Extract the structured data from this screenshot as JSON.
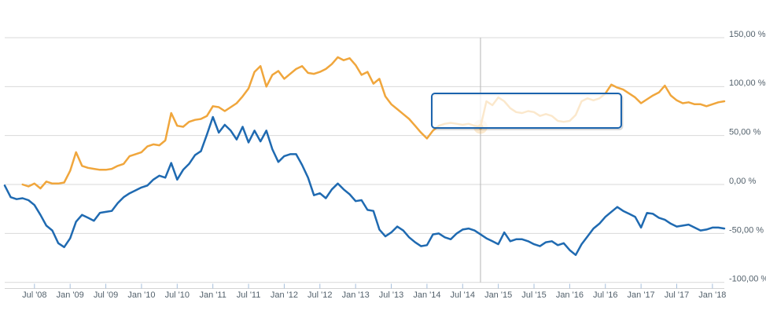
{
  "chart": {
    "background_color": "#ffffff",
    "grid_color": "#d9d9d9",
    "axis_line_color": "#d4d4d4",
    "tick_color": "#a5bedb",
    "label_color": "#53616c",
    "crosshair_color": "#b5b5b5",
    "y_axis": {
      "position": "right",
      "tick_values": [
        150,
        100,
        50,
        0,
        -50,
        -100
      ],
      "tick_labels": [
        "150,00 %",
        "100,00 %",
        "50,00 %",
        "0,00 %",
        "-50,00 %",
        "-100,00 %"
      ]
    },
    "x_axis": {
      "first_tick_month": "2008-07",
      "tick_interval_months": 6,
      "tick_labels": [
        "Jul '08",
        "Jan '09",
        "Jul '09",
        "Jan '10",
        "Jul '10",
        "Jan '11",
        "Jul '11",
        "Jan '12",
        "Jul '12",
        "Jan '13",
        "Jul '13",
        "Jan '14",
        "Jul '14",
        "Jan '15",
        "Jul '15",
        "Jan '16",
        "Jul '16",
        "Jan '17",
        "Jul '17",
        "Jan '18"
      ]
    },
    "tooltip": {
      "visible": true,
      "text": "",
      "border_color": "#1a63ad",
      "fill_color": "rgba(255,255,255,0.74)"
    },
    "highlight": {
      "date": "2014-10",
      "series": "series_2_orange",
      "value_pct": 59,
      "marker_color": "#f0a63c",
      "halo_color": "rgba(240,166,60,0.25)"
    }
  },
  "chart_data": {
    "type": "line",
    "x_unit": "month",
    "y_unit": "percent",
    "x_start": "2008-02",
    "x_end": "2018-03",
    "ylim": [
      -100,
      150
    ],
    "grid": true,
    "legend": "none",
    "series": [
      {
        "name": "series_1_blue",
        "color": "#1f6ab1",
        "start": "2008-02",
        "values": [
          -1,
          -13,
          -15,
          -14,
          -16,
          -21,
          -31,
          -42,
          -47,
          -60,
          -64,
          -55,
          -38,
          -31,
          -34,
          -37,
          -29,
          -28,
          -27,
          -19,
          -13,
          -9,
          -6,
          -3,
          -1,
          5,
          9,
          7,
          22,
          5,
          15,
          21,
          30,
          34,
          51,
          69,
          53,
          61,
          55,
          46,
          59,
          43,
          55,
          44,
          55,
          36,
          23,
          29,
          31,
          31,
          20,
          7,
          -11,
          -9,
          -14,
          -5,
          1,
          -5,
          -10,
          -17,
          -16,
          -26,
          -27,
          -46,
          -53,
          -49,
          -43,
          -47,
          -54,
          -59,
          -63,
          -62,
          -51,
          -50,
          -54,
          -56,
          -50,
          -46,
          -45,
          -47,
          -51,
          -55,
          -58,
          -61,
          -49,
          -58,
          -56,
          -56,
          -58,
          -61,
          -63,
          -59,
          -58,
          -62,
          -60,
          -67,
          -72,
          -61,
          -53,
          -45,
          -40,
          -33,
          -28,
          -23,
          -27,
          -30,
          -33,
          -44,
          -29,
          -30,
          -34,
          -36,
          -40,
          -43,
          -42,
          -41,
          -44,
          -47,
          -46,
          -44,
          -44,
          -45
        ]
      },
      {
        "name": "series_2_orange",
        "color": "#f0a63c",
        "start": "2008-05",
        "values": [
          0,
          -2,
          1,
          -4,
          3,
          1,
          1,
          2,
          14,
          33,
          19,
          17,
          16,
          15,
          15,
          16,
          19,
          21,
          29,
          31,
          33,
          39,
          41,
          40,
          45,
          73,
          60,
          59,
          64,
          66,
          67,
          70,
          80,
          79,
          75,
          79,
          83,
          90,
          98,
          115,
          121,
          100,
          112,
          116,
          108,
          113,
          118,
          121,
          114,
          113,
          115,
          118,
          123,
          130,
          127,
          129,
          122,
          112,
          115,
          103,
          108,
          90,
          82,
          77,
          72,
          67,
          60,
          53,
          47,
          55,
          60,
          62,
          63,
          62,
          61,
          62,
          60,
          59,
          85,
          81,
          89,
          85,
          78,
          74,
          73,
          75,
          74,
          70,
          72,
          70,
          65,
          64,
          65,
          71,
          85,
          88,
          86,
          88,
          93,
          102,
          99,
          97,
          93,
          89,
          83,
          87,
          91,
          94,
          101,
          91,
          86,
          83,
          84,
          82,
          82,
          80,
          82,
          84,
          85
        ]
      }
    ]
  }
}
